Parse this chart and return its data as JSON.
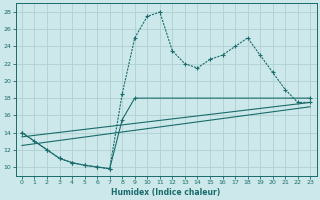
{
  "xlabel": "Humidex (Indice chaleur)",
  "bg_color": "#cce8ea",
  "grid_color": "#b0d0d2",
  "line_color": "#1a6b6b",
  "xlim": [
    -0.5,
    23.5
  ],
  "ylim": [
    9,
    29
  ],
  "xticks": [
    0,
    1,
    2,
    3,
    4,
    5,
    6,
    7,
    8,
    9,
    10,
    11,
    12,
    13,
    14,
    15,
    16,
    17,
    18,
    19,
    20,
    21,
    22,
    23
  ],
  "yticks": [
    10,
    12,
    14,
    16,
    18,
    20,
    22,
    24,
    26,
    28
  ],
  "series1_x": [
    0,
    1,
    2,
    3,
    4,
    5,
    6,
    7,
    8,
    9,
    10,
    11,
    12,
    13,
    14,
    15,
    16,
    17,
    18,
    19,
    20,
    21,
    22,
    23
  ],
  "series1_y": [
    14,
    13,
    12,
    11,
    10.5,
    10.2,
    10.0,
    9.8,
    18.5,
    25.0,
    27.5,
    28,
    23.5,
    22.0,
    21.5,
    22.5,
    23.0,
    24.0,
    25.0,
    23.0,
    21.0,
    19.0,
    17.5,
    17.5
  ],
  "series2_x": [
    0,
    2,
    3,
    4,
    5,
    6,
    7,
    8,
    9,
    23
  ],
  "series2_y": [
    14,
    12,
    11,
    10.5,
    10.2,
    10.0,
    9.8,
    15.5,
    18.0,
    18.0
  ],
  "series3_x": [
    0,
    23
  ],
  "series3_y": [
    13.5,
    17.5
  ],
  "series4_x": [
    0,
    23
  ],
  "series4_y": [
    12.5,
    17.0
  ]
}
